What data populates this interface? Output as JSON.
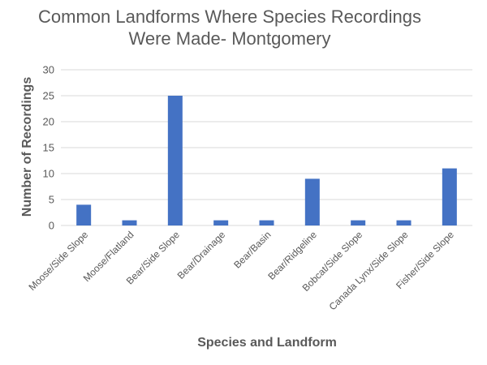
{
  "chart_data": {
    "type": "bar",
    "title_lines": [
      "Common Landforms Where Species Recordings",
      "Were Made- Montgomery"
    ],
    "xlabel": "Species and Landform",
    "ylabel": "Number of Recordings",
    "categories": [
      "Moose/Side Slope",
      "Moose/Flatland",
      "Bear/Side Slope",
      "Bear/Drainage",
      "Bear/Basin",
      "Bear/Ridgeline",
      "Bobcat/Side Slope",
      "Canada Lynx/Side Slope",
      "Fisher/Side Slope"
    ],
    "values": [
      4,
      1,
      25,
      1,
      1,
      9,
      1,
      1,
      11
    ],
    "ylim": [
      0,
      30
    ],
    "yticks": [
      0,
      5,
      10,
      15,
      20,
      25,
      30
    ],
    "grid": true,
    "legend": "none",
    "bar_color": "#4472c4"
  }
}
